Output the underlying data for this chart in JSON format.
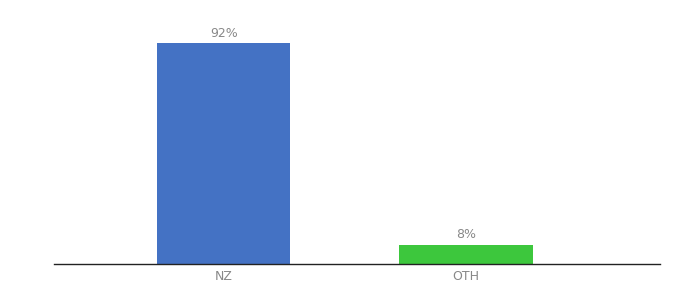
{
  "categories": [
    "NZ",
    "OTH"
  ],
  "values": [
    92,
    8
  ],
  "bar_colors": [
    "#4472c4",
    "#3dc73d"
  ],
  "value_labels": [
    "92%",
    "8%"
  ],
  "ylim": [
    0,
    100
  ],
  "background_color": "#ffffff",
  "label_fontsize": 9,
  "tick_fontsize": 9,
  "bar_width": 0.55,
  "x_positions": [
    1,
    2
  ],
  "xlim": [
    0.3,
    2.8
  ]
}
